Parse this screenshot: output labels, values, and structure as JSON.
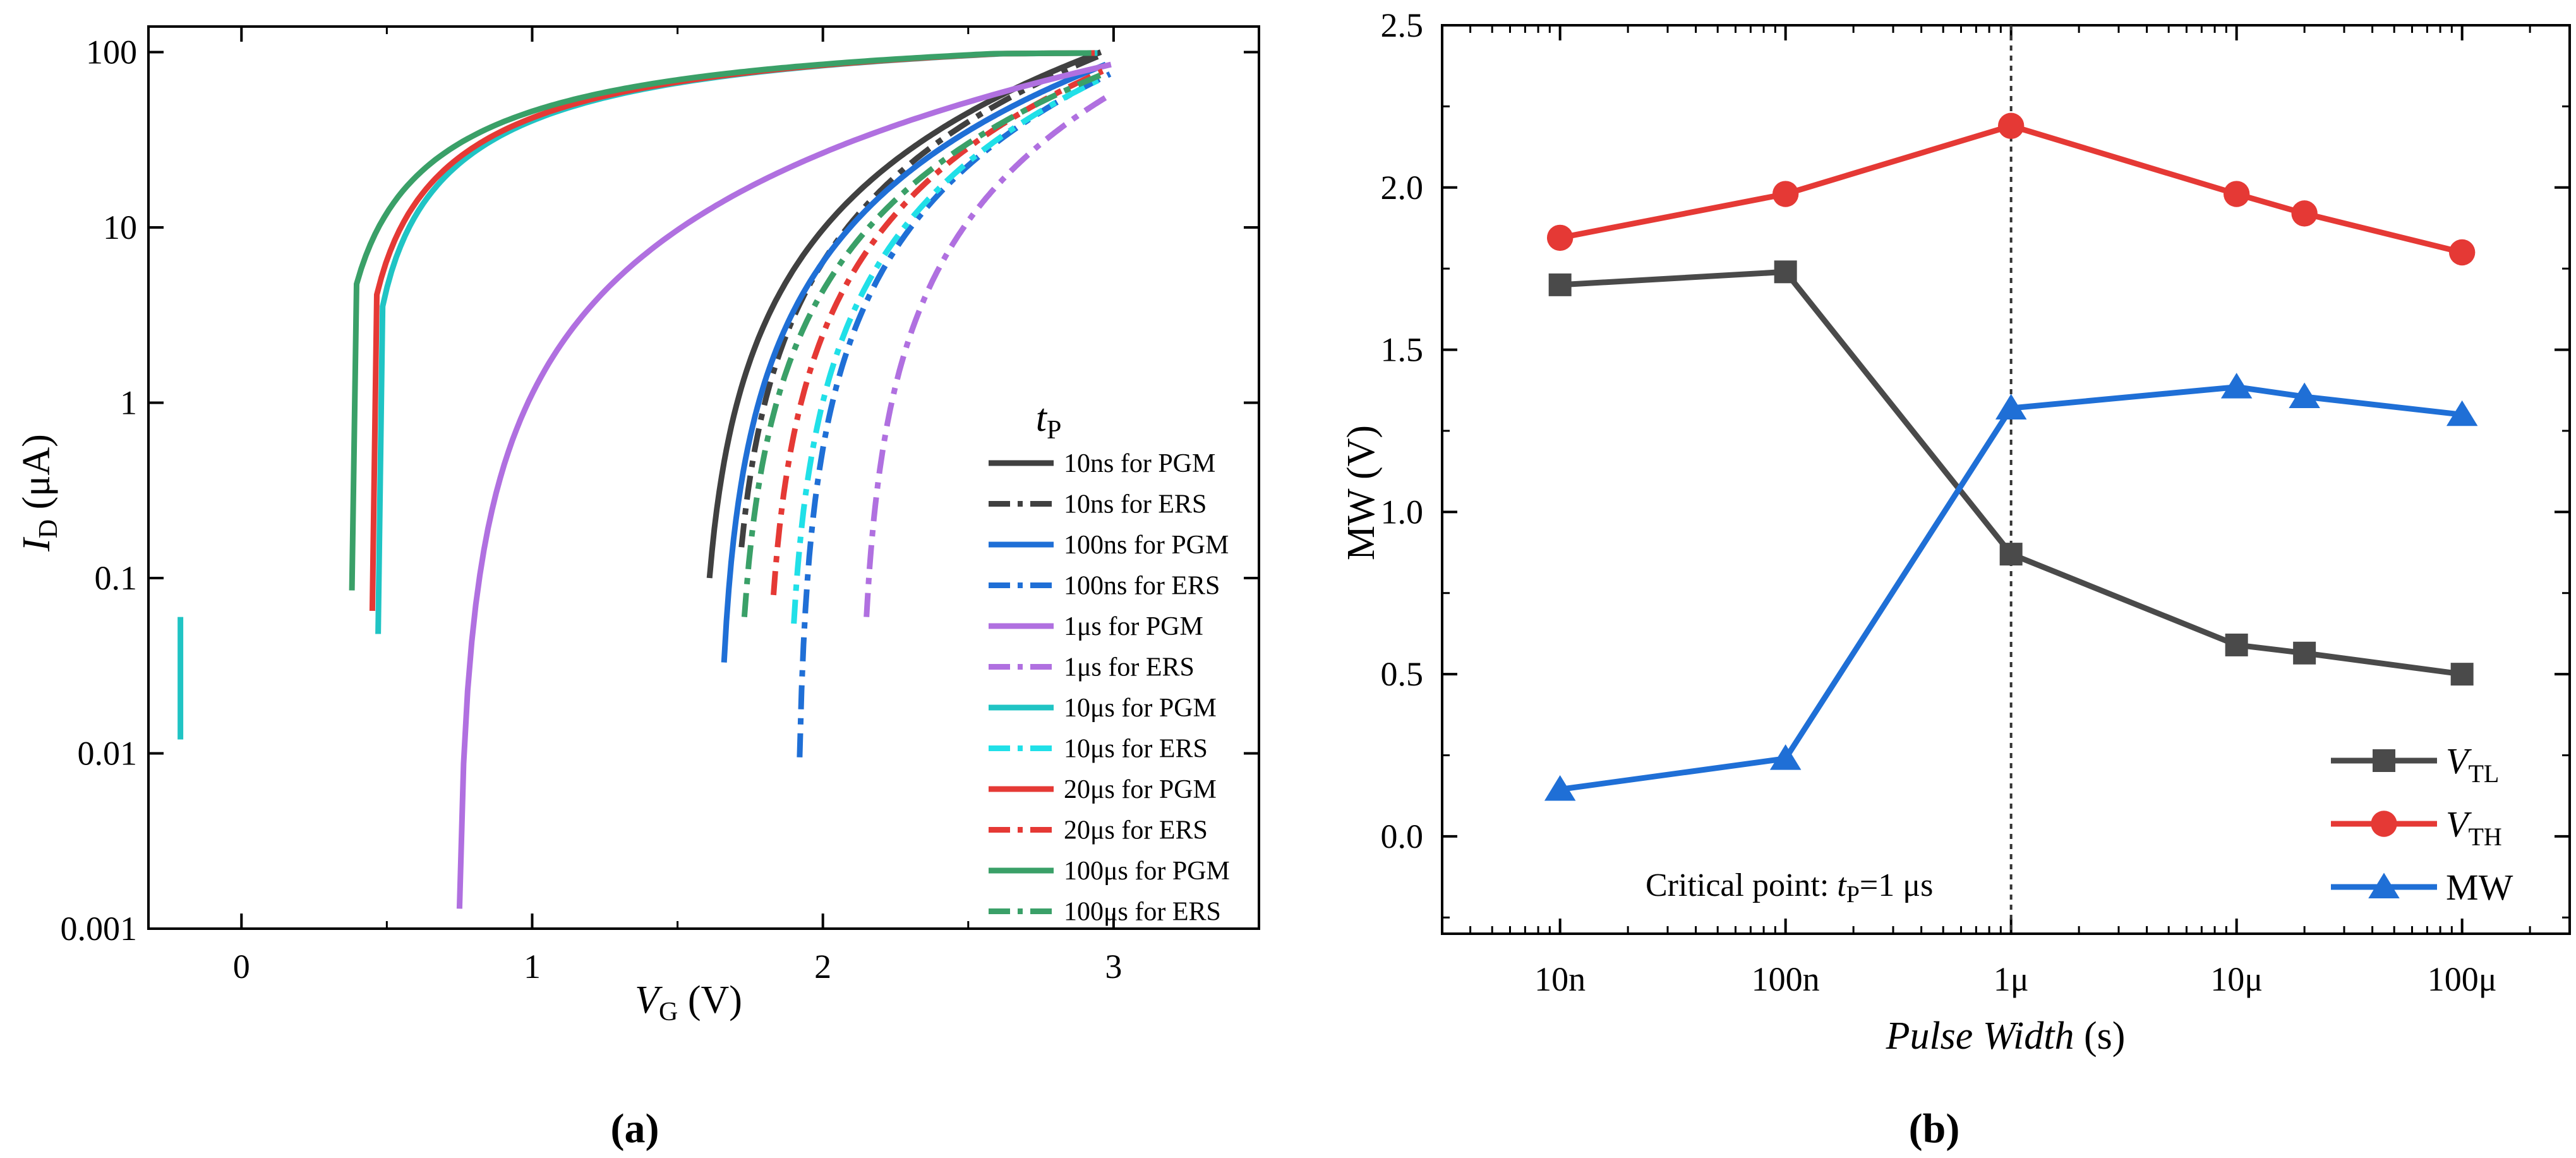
{
  "figure": {
    "panel_a_label": "(a)",
    "panel_b_label": "(b)"
  },
  "chart_data": [
    {
      "type": "line",
      "panel": "a",
      "title": "",
      "xlabel": "VG (V)",
      "ylabel": "ID (μA)",
      "xscale": "linear",
      "yscale": "log",
      "xlim": [
        -0.32,
        3.5
      ],
      "ylim": [
        0.001,
        140
      ],
      "x_ticks": [
        0,
        1,
        2,
        3
      ],
      "x_tick_labels": [
        "0",
        "1",
        "2",
        "3"
      ],
      "y_ticks": [
        0.001,
        0.01,
        0.1,
        1,
        10,
        100
      ],
      "y_tick_labels": [
        "0.001",
        "0.01",
        "0.1",
        "1",
        "10",
        "100"
      ],
      "legend_title": "tP",
      "legend_position": "right",
      "series": [
        {
          "name": "10ns for PGM",
          "color": "#404040",
          "style": "solid",
          "vth": 1.61,
          "i_start": 0.1
        },
        {
          "name": "10ns for ERS",
          "color": "#404040",
          "style": "dashdot",
          "vth": 1.72,
          "i_start": 0.15
        },
        {
          "name": "100ns for PGM",
          "color": "#1f6fd6",
          "style": "solid",
          "vth": 1.66,
          "i_start": 0.033
        },
        {
          "name": "100ns for ERS",
          "color": "#1f6fd6",
          "style": "dashdot",
          "vth": 1.92,
          "i_start": 0.0095
        },
        {
          "name": "1μs for PGM",
          "color": "#b070e0",
          "style": "solid",
          "vth": 0.75,
          "i_start": 0.0013
        },
        {
          "name": "1μs for ERS",
          "color": "#b070e0",
          "style": "dashdot",
          "vth": 2.15,
          "i_start": 0.06
        },
        {
          "name": "10μs for PGM",
          "color": "#20c4c4",
          "style": "solid",
          "vth": 0.47,
          "i_start": 0.048
        },
        {
          "name": "10μs for ERS",
          "color": "#20e0e8",
          "style": "dashdot",
          "vth": 1.9,
          "i_start": 0.055
        },
        {
          "name": "20μs for PGM",
          "color": "#e53935",
          "style": "solid",
          "vth": 0.45,
          "i_start": 0.065
        },
        {
          "name": "20μs for ERS",
          "color": "#e53935",
          "style": "dashdot",
          "vth": 1.83,
          "i_start": 0.08
        },
        {
          "name": "100μs for PGM",
          "color": "#3aa068",
          "style": "solid",
          "vth": 0.38,
          "i_start": 0.085
        },
        {
          "name": "100μs for ERS",
          "color": "#3aa068",
          "style": "dashdot",
          "vth": 1.73,
          "i_start": 0.06
        }
      ],
      "stray_segment": {
        "name": "10μs for PGM",
        "x": -0.21,
        "y_range": [
          0.012,
          0.06
        ]
      }
    },
    {
      "type": "line",
      "panel": "b",
      "title": "",
      "xlabel": "Pulse Width (s)",
      "ylabel": "MW (V)",
      "xscale": "log",
      "yscale": "linear",
      "xlim": [
        3e-09,
        0.0003
      ],
      "ylim": [
        -0.3,
        2.5
      ],
      "x_ticks": [
        1e-08,
        1e-07,
        1e-06,
        1e-05,
        0.0001
      ],
      "x_tick_labels": [
        "10n",
        "100n",
        "1μ",
        "10μ",
        "100μ"
      ],
      "y_ticks": [
        0.0,
        0.5,
        1.0,
        1.5,
        2.0,
        2.5
      ],
      "y_tick_labels": [
        "0.0",
        "0.5",
        "1.0",
        "1.5",
        "2.0",
        "2.5"
      ],
      "annotation": "Critical point: tP=1 μs",
      "vline_x": 1e-06,
      "legend_position": "bottom-right",
      "x": [
        1e-08,
        1e-07,
        1e-06,
        1e-05,
        2e-05,
        0.0001
      ],
      "series": [
        {
          "name": "VTL",
          "color": "#4a4a4a",
          "marker": "square",
          "values": [
            1.7,
            1.74,
            0.87,
            0.59,
            0.565,
            0.5
          ]
        },
        {
          "name": "VTH",
          "color": "#e53935",
          "marker": "circle",
          "values": [
            1.845,
            1.98,
            2.19,
            1.98,
            1.92,
            1.8
          ]
        },
        {
          "name": "MW",
          "color": "#1f6fd6",
          "marker": "triangle",
          "values": [
            0.145,
            0.24,
            1.32,
            1.385,
            1.355,
            1.3
          ]
        }
      ]
    }
  ]
}
